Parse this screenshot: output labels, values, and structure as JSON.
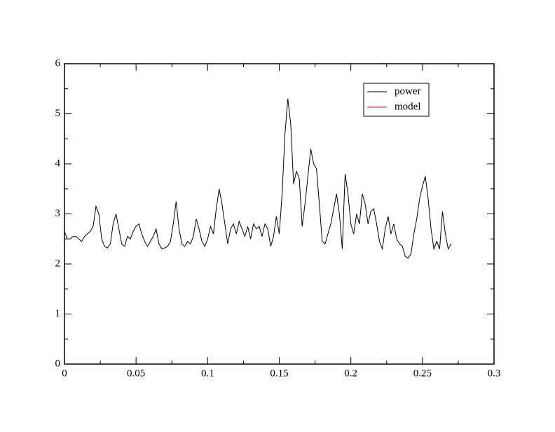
{
  "chart_data": {
    "type": "line",
    "series": [
      {
        "name": "power",
        "color": "#000000",
        "x": [
          0,
          0.002,
          0.004,
          0.006,
          0.008,
          0.01,
          0.012,
          0.014,
          0.016,
          0.018,
          0.02,
          0.022,
          0.024,
          0.026,
          0.028,
          0.03,
          0.032,
          0.034,
          0.036,
          0.038,
          0.04,
          0.042,
          0.044,
          0.046,
          0.048,
          0.05,
          0.052,
          0.054,
          0.056,
          0.058,
          0.06,
          0.062,
          0.064,
          0.066,
          0.068,
          0.07,
          0.072,
          0.074,
          0.076,
          0.078,
          0.08,
          0.082,
          0.084,
          0.086,
          0.088,
          0.09,
          0.092,
          0.094,
          0.096,
          0.098,
          0.1,
          0.102,
          0.104,
          0.106,
          0.108,
          0.11,
          0.112,
          0.114,
          0.116,
          0.118,
          0.12,
          0.122,
          0.124,
          0.126,
          0.128,
          0.13,
          0.132,
          0.134,
          0.136,
          0.138,
          0.14,
          0.142,
          0.144,
          0.146,
          0.148,
          0.15,
          0.152,
          0.154,
          0.156,
          0.158,
          0.16,
          0.162,
          0.164,
          0.166,
          0.168,
          0.17,
          0.172,
          0.174,
          0.176,
          0.178,
          0.18,
          0.182,
          0.184,
          0.186,
          0.188,
          0.19,
          0.192,
          0.194,
          0.196,
          0.198,
          0.2,
          0.202,
          0.204,
          0.206,
          0.208,
          0.21,
          0.212,
          0.214,
          0.216,
          0.218,
          0.22,
          0.222,
          0.224,
          0.226,
          0.228,
          0.23,
          0.232,
          0.234,
          0.236,
          0.238,
          0.24,
          0.242,
          0.244,
          0.246,
          0.248,
          0.25,
          0.252,
          0.254,
          0.256,
          0.258,
          0.26,
          0.262,
          0.264,
          0.266,
          0.268,
          0.27
        ],
        "values": [
          2.65,
          2.5,
          2.5,
          2.55,
          2.55,
          2.5,
          2.45,
          2.55,
          2.6,
          2.65,
          2.75,
          3.15,
          3.0,
          2.5,
          2.35,
          2.32,
          2.4,
          2.8,
          3.0,
          2.7,
          2.4,
          2.35,
          2.55,
          2.5,
          2.65,
          2.75,
          2.8,
          2.6,
          2.45,
          2.35,
          2.45,
          2.55,
          2.7,
          2.4,
          2.3,
          2.32,
          2.35,
          2.45,
          2.8,
          3.25,
          2.7,
          2.4,
          2.35,
          2.45,
          2.4,
          2.55,
          2.9,
          2.7,
          2.45,
          2.35,
          2.5,
          2.75,
          2.6,
          3.1,
          3.5,
          3.2,
          2.8,
          2.4,
          2.7,
          2.8,
          2.6,
          2.85,
          2.7,
          2.55,
          2.75,
          2.5,
          2.8,
          2.7,
          2.75,
          2.55,
          2.8,
          2.7,
          2.35,
          2.55,
          2.95,
          2.6,
          3.4,
          4.6,
          5.3,
          4.8,
          3.6,
          3.85,
          3.7,
          2.75,
          3.2,
          3.75,
          4.3,
          4.0,
          3.9,
          3.2,
          2.45,
          2.4,
          2.6,
          2.8,
          3.1,
          3.4,
          3.0,
          2.3,
          3.8,
          3.4,
          2.8,
          2.6,
          3.0,
          2.8,
          3.4,
          3.2,
          2.8,
          3.05,
          3.1,
          2.8,
          2.45,
          2.3,
          2.7,
          2.95,
          2.6,
          2.8,
          2.5,
          2.4,
          2.35,
          2.15,
          2.12,
          2.2,
          2.6,
          2.9,
          3.3,
          3.55,
          3.75,
          3.3,
          2.7,
          2.3,
          2.45,
          2.3,
          3.05,
          2.6,
          2.3,
          2.4
        ]
      },
      {
        "name": "model",
        "color": "#ff0000",
        "x": [],
        "values": []
      }
    ],
    "xlim": [
      0,
      0.3
    ],
    "xticks": [
      0,
      0.05,
      0.1,
      0.15,
      0.2,
      0.25,
      0.3
    ],
    "xminorticks": [
      0.025,
      0.075,
      0.125,
      0.175,
      0.225,
      0.275
    ],
    "ylim": [
      0,
      6
    ],
    "yticks": [
      0,
      1,
      2,
      3,
      4,
      5,
      6
    ],
    "yminorticks": [
      0.5,
      1.5,
      2.5,
      3.5,
      4.5,
      5.5
    ],
    "legend": "upper right"
  }
}
